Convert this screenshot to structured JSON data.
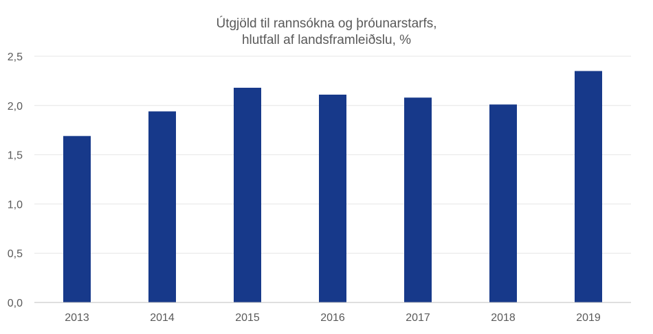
{
  "chart_data": {
    "type": "bar",
    "title_lines": [
      "Útgjöld til rannsókna og þróunarstarfs,",
      "hlutfall af landsframleiðslu, %"
    ],
    "xlabel": "",
    "ylabel": "",
    "categories": [
      "2013",
      "2014",
      "2015",
      "2016",
      "2017",
      "2018",
      "2019"
    ],
    "values": [
      1.69,
      1.94,
      2.18,
      2.11,
      2.08,
      2.01,
      2.35
    ],
    "ylim": [
      0,
      2.5
    ],
    "yticks": [
      0,
      0.5,
      1.0,
      1.5,
      2.0,
      2.5
    ],
    "ytick_labels": [
      "0,0",
      "0,5",
      "1,0",
      "1,5",
      "2,0",
      "2,5"
    ],
    "grid": true,
    "legend": "none",
    "bar_color": "#17398a"
  }
}
